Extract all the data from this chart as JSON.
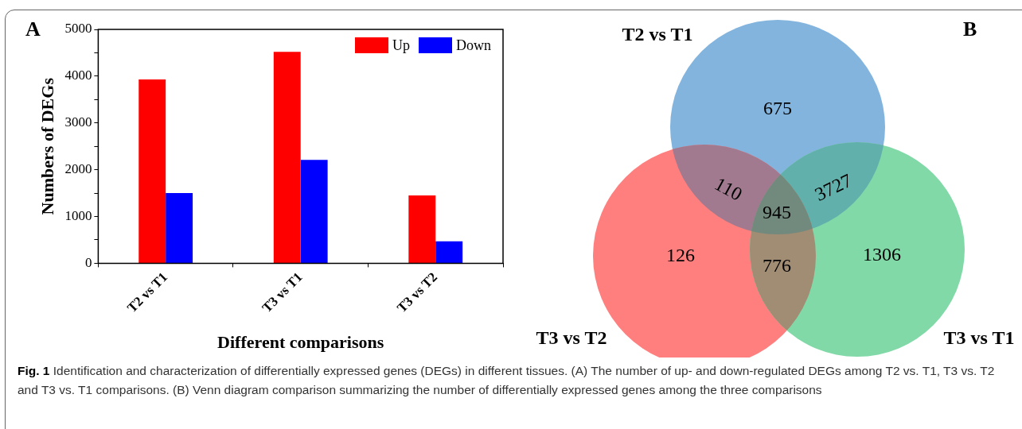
{
  "chart_data": [
    {
      "type": "bar",
      "title": "A",
      "categories": [
        "T2 vs T1",
        "T3 vs T1",
        "T3 vs T2"
      ],
      "series": [
        {
          "name": "Up",
          "color": "#ff0000",
          "values": [
            3930,
            4520,
            1450
          ]
        },
        {
          "name": "Down",
          "color": "#0000ff",
          "values": [
            1500,
            2210,
            470
          ]
        }
      ],
      "xlabel": "Different comparisons",
      "ylabel": "Numbers of DEGs",
      "ylim": [
        0,
        5000
      ],
      "yticks": [
        0,
        {
          "value": 500,
          "label": null
        },
        1000,
        {
          "value": 1500,
          "label": null
        },
        2000,
        {
          "value": 2500,
          "label": null
        },
        3000,
        {
          "value": 3500,
          "label": null
        },
        4000,
        {
          "value": 4500,
          "label": null
        },
        5000
      ],
      "legend": "top right",
      "annotations": [
        "Fig. 1",
        "Identification and characterization of differentially expressed genes (DEGs) in different tissues. (A) The number of up- and down-regulated DEGs among T2 vs. T1, T3 vs. T2 and T3 vs. T1 comparisons. (B) Venn diagram comparison summarizing the number of differentially expressed genes among the three comparisons"
      ]
    },
    {
      "type": "other",
      "title": "B",
      "colors": [
        "#82b4de",
        "#ff7f7f",
        "#82d9a8"
      ],
      "annotations": [
        "T2 vs T1",
        "T3 vs T2",
        "T3 vs T1",
        "675",
        "126",
        "1306",
        "110",
        "3727",
        "776",
        "945"
      ]
    }
  ]
}
